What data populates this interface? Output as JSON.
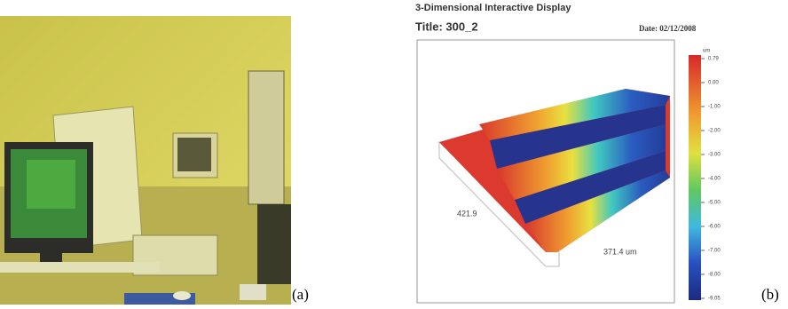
{
  "panel_a": {
    "label": "(a)"
  },
  "panel_b": {
    "label": "(b)",
    "heading": "3-Dimensional Interactive Display",
    "title": "Title: 300_2",
    "date": "Date: 02/12/2008",
    "colorbar": {
      "unit": "um",
      "labels": [
        "0.79",
        "0.00",
        "-1.00",
        "-2.00",
        "-3.00",
        "-4.00",
        "-5.00",
        "-6.00",
        "-7.00",
        "-8.00",
        "-9.05"
      ]
    },
    "dimensions": [
      "421.9",
      "371.4 um"
    ]
  }
}
